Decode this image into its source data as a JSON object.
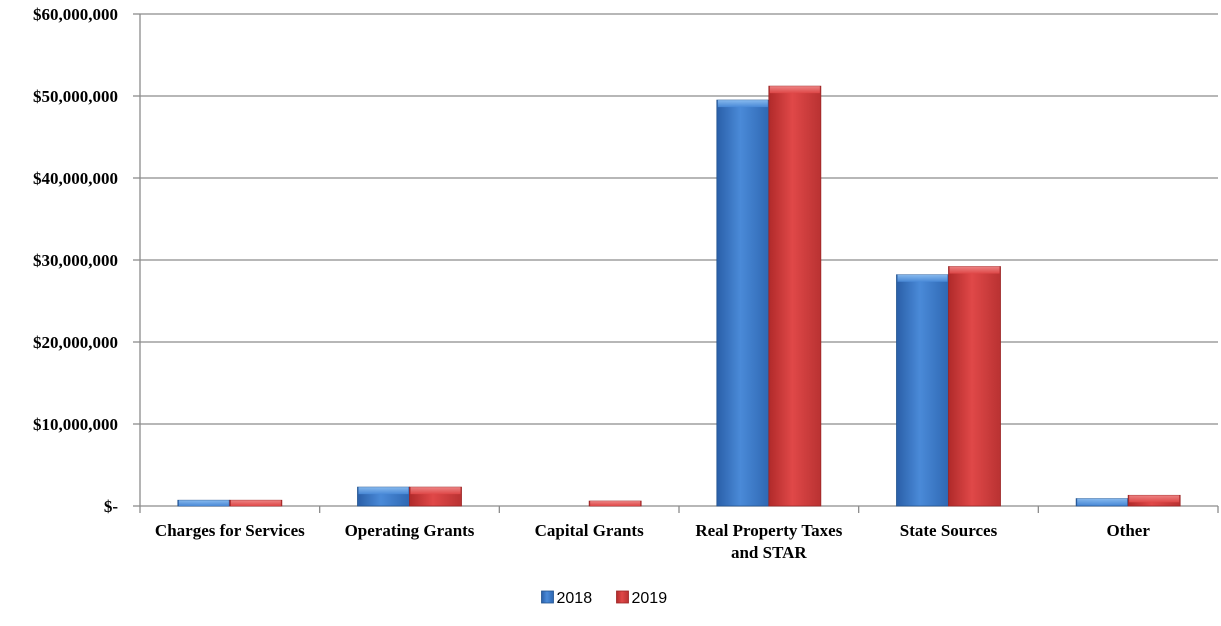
{
  "chart_data": {
    "type": "bar",
    "title": "",
    "xlabel": "",
    "ylabel": "",
    "categories": [
      [
        "Charges for Services"
      ],
      [
        "Operating Grants"
      ],
      [
        "Capital Grants"
      ],
      [
        "Real Property Taxes",
        "and STAR"
      ],
      [
        "State Sources"
      ],
      [
        "Other"
      ]
    ],
    "series": [
      {
        "name": "2018",
        "color": "#3a78c9",
        "values": [
          700000,
          2300000,
          0,
          49500000,
          28200000,
          900000
        ]
      },
      {
        "name": "2019",
        "color": "#d33b3b",
        "values": [
          700000,
          2300000,
          600000,
          51200000,
          29200000,
          1300000
        ]
      }
    ],
    "ylim": [
      0,
      60000000
    ],
    "y_ticks": [
      {
        "value": 0,
        "label": "$-"
      },
      {
        "value": 10000000,
        "label": "$10,000,000"
      },
      {
        "value": 20000000,
        "label": "$20,000,000"
      },
      {
        "value": 30000000,
        "label": "$30,000,000"
      },
      {
        "value": 40000000,
        "label": "$40,000,000"
      },
      {
        "value": 50000000,
        "label": "$50,000,000"
      },
      {
        "value": 60000000,
        "label": "$60,000,000"
      }
    ],
    "grid": true,
    "legend_position": "bottom-center"
  }
}
